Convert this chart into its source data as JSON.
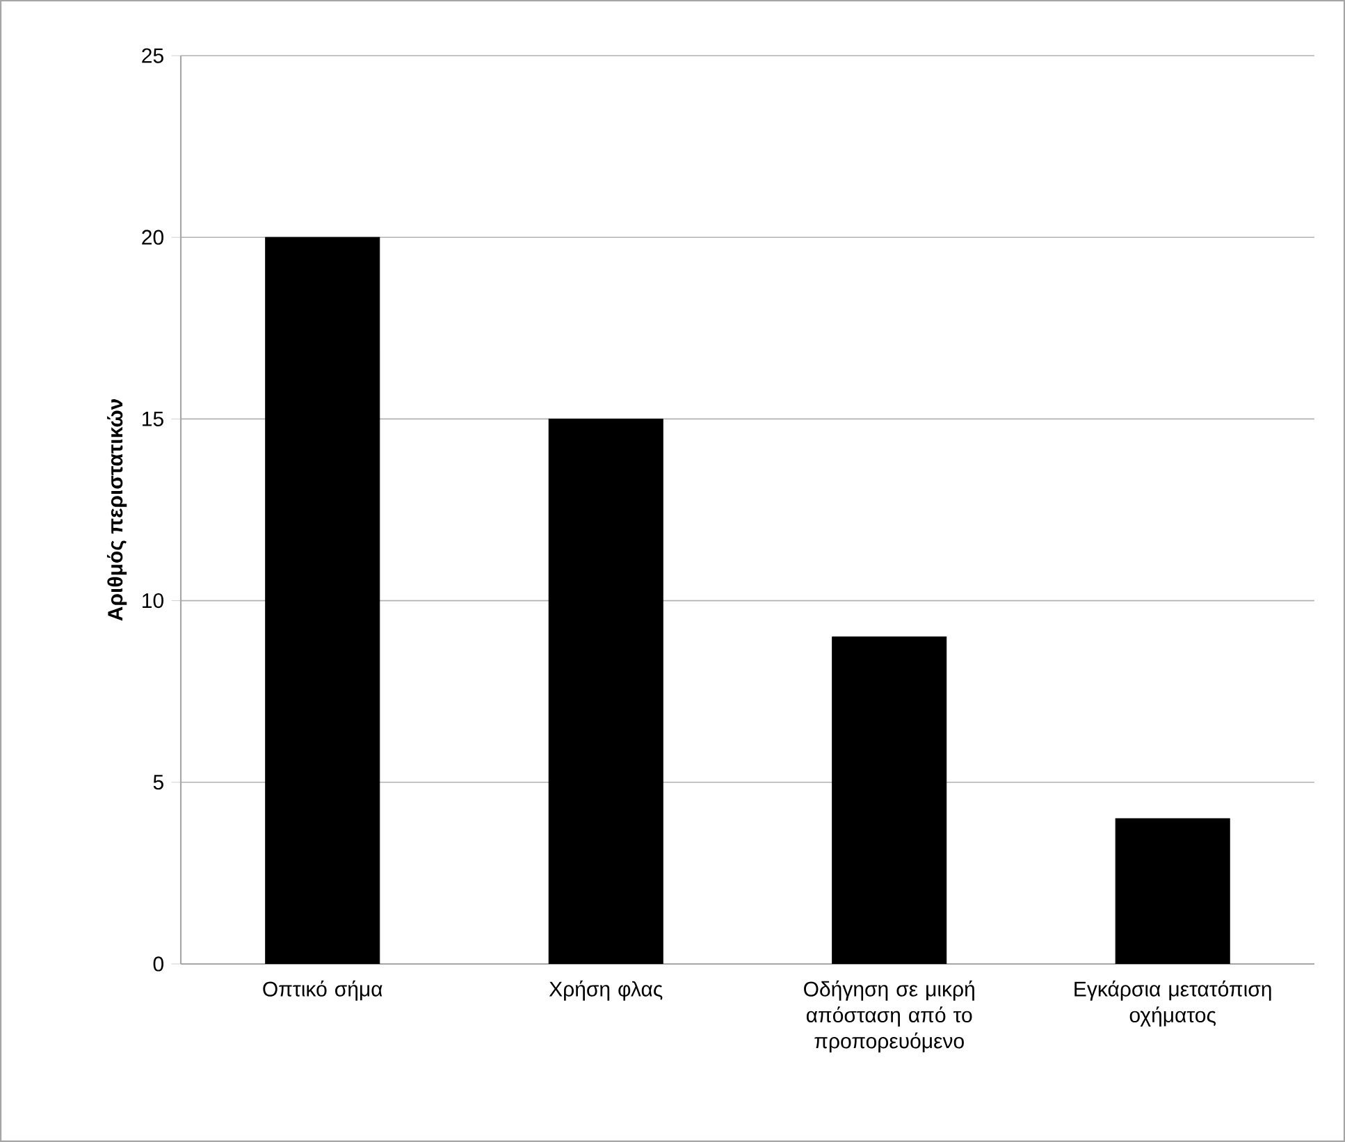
{
  "chart_data": {
    "type": "bar",
    "ylabel": "Αριθμός περιστατικών",
    "categories": [
      "Οπτικό σήμα",
      "Χρήση φλας",
      "Οδήγηση σε μικρή απόσταση από το προπορευόμενο",
      "Εγκάρσια μετατόπιση οχήματος"
    ],
    "values": [
      20,
      15,
      9,
      4
    ],
    "color": "#000000",
    "ylim": [
      0,
      25
    ],
    "yticks": [
      0,
      5,
      10,
      15,
      20,
      25
    ],
    "grid": "y"
  }
}
